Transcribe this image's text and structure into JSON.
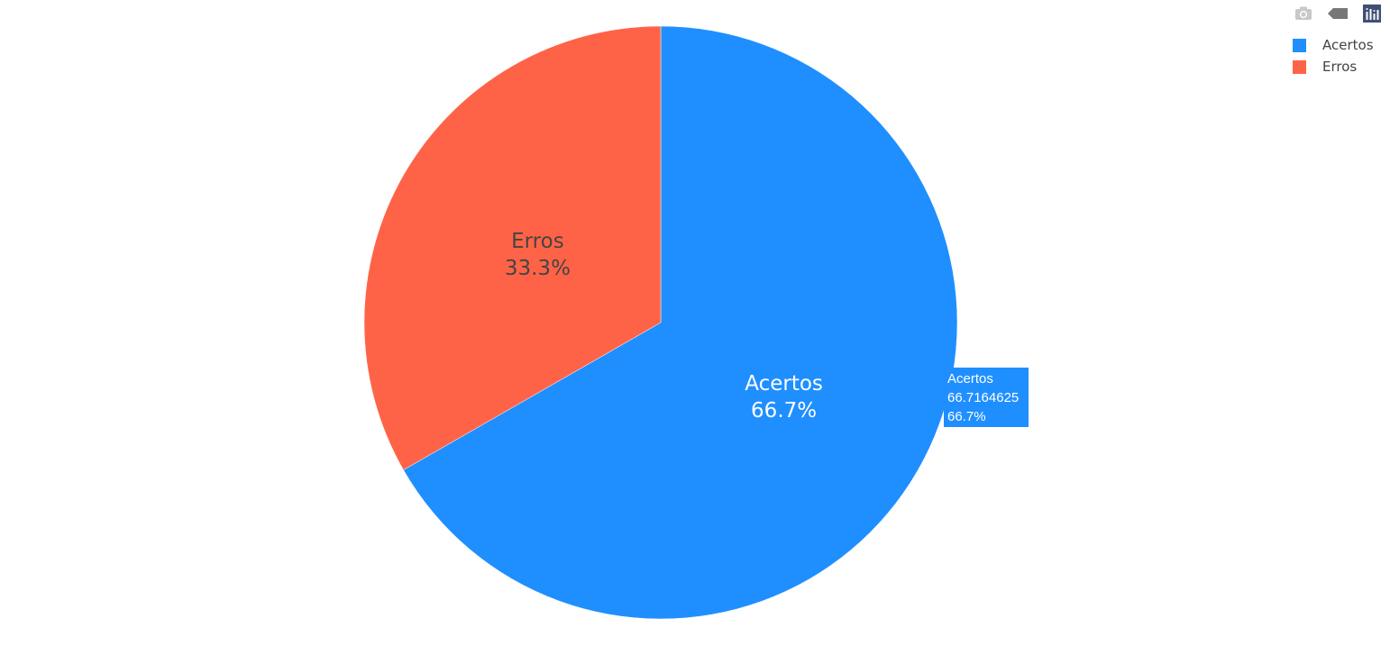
{
  "chart_data": {
    "type": "pie",
    "title": "",
    "labels": [
      "Acertos",
      "Erros"
    ],
    "values": [
      66.7164625,
      33.2835375
    ],
    "percent_labels": [
      "66.7%",
      "33.3%"
    ],
    "colors": [
      "#1f8fff",
      "#ff6347"
    ],
    "slice_text_colors": [
      "#ffffff",
      "#444444"
    ],
    "legend": {
      "position": "top-right",
      "entries": [
        "Acertos",
        "Erros"
      ]
    }
  },
  "hover": {
    "label": "Acertos",
    "value": "66.7164625",
    "percent": "66.7%"
  },
  "modebar": {
    "icons": [
      "camera-icon",
      "tag-icon",
      "bar-chart-icon"
    ]
  }
}
